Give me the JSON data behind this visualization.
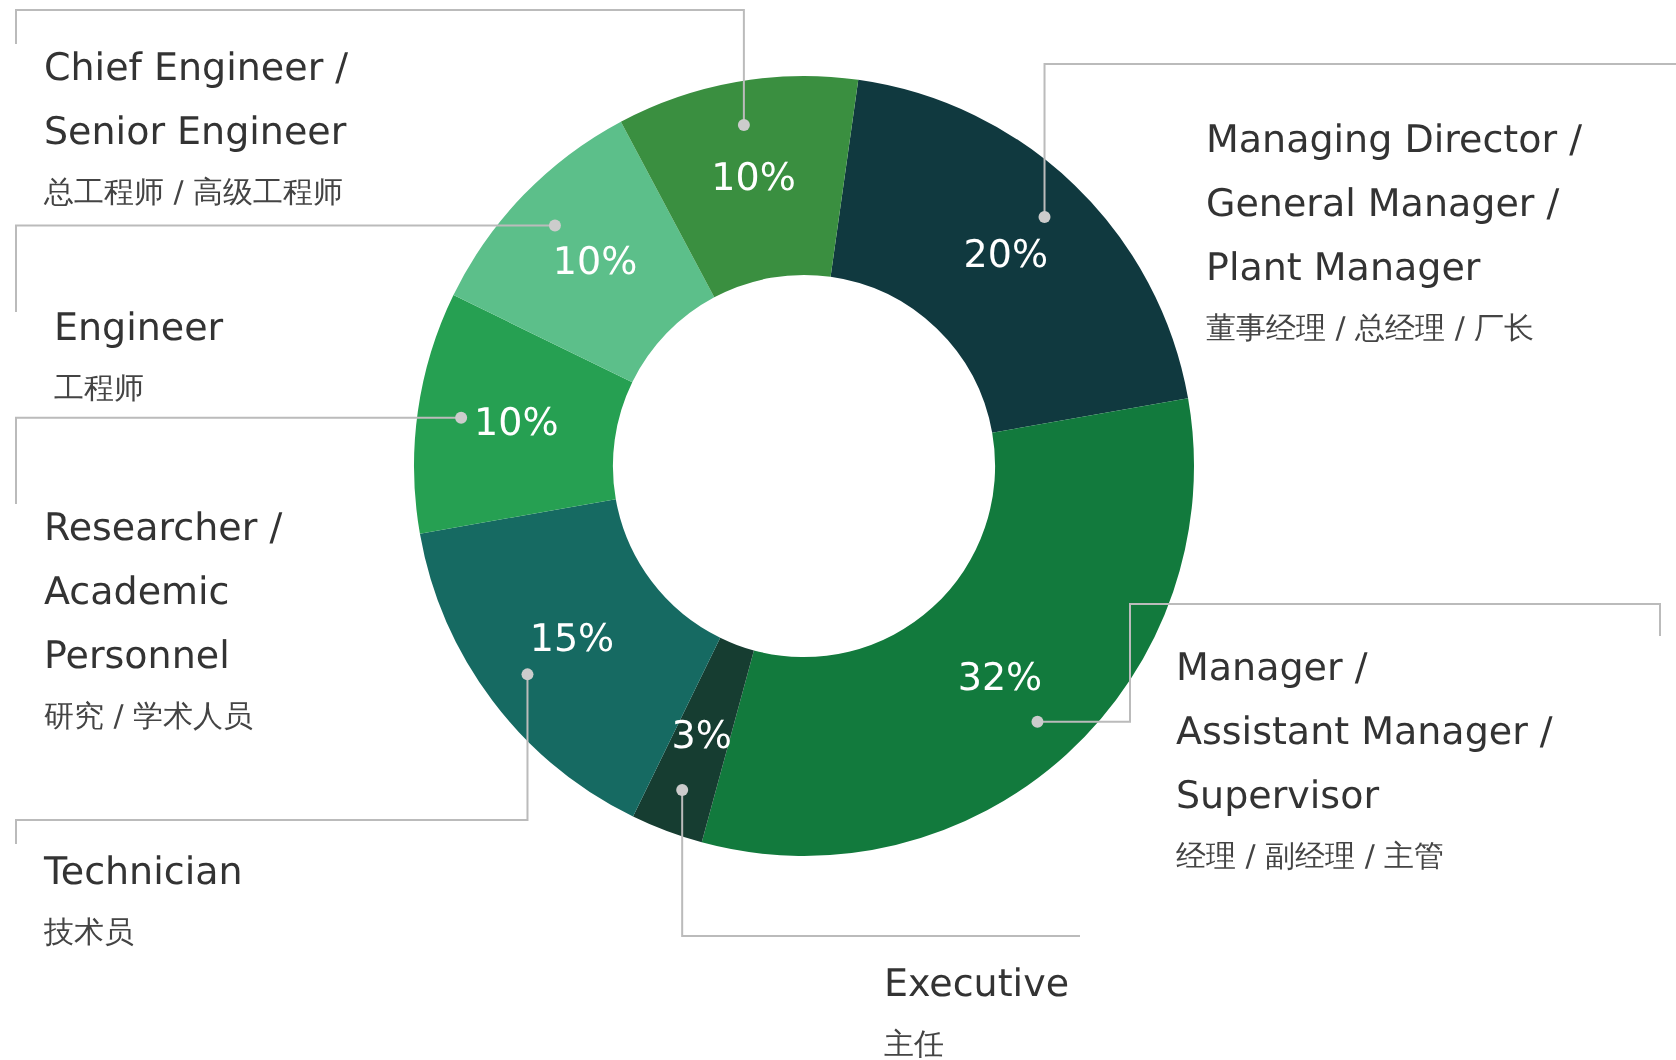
{
  "chart_data": {
    "type": "donut",
    "categories": [
      "Managing Director /\nGeneral Manager /\nPlant Manager\n董事经理 / 总经理 / 厂长",
      "Manager /\nAssistant Manager /\nSupervisor\n经理 / 副经理 / 主管",
      "Executive\n主任",
      "Technician\n技术员",
      "Researcher /\nAcademic\nPersonnel\n研究 / 学术人员",
      "Engineer\n工程师",
      "Chief Engineer /\nSenior Engineer\n总工程师 / 高级工程师"
    ],
    "values": [
      20,
      32,
      3,
      15,
      10,
      10,
      10
    ],
    "colors": [
      "#10393f",
      "#127a3d",
      "#163d31",
      "#166a62",
      "#26a052",
      "#5cbf8a",
      "#3a8f40"
    ],
    "value_labels": [
      "20%",
      "32%",
      "3%",
      "15%",
      "10%",
      "10%",
      "10%"
    ],
    "legend": false
  }
}
